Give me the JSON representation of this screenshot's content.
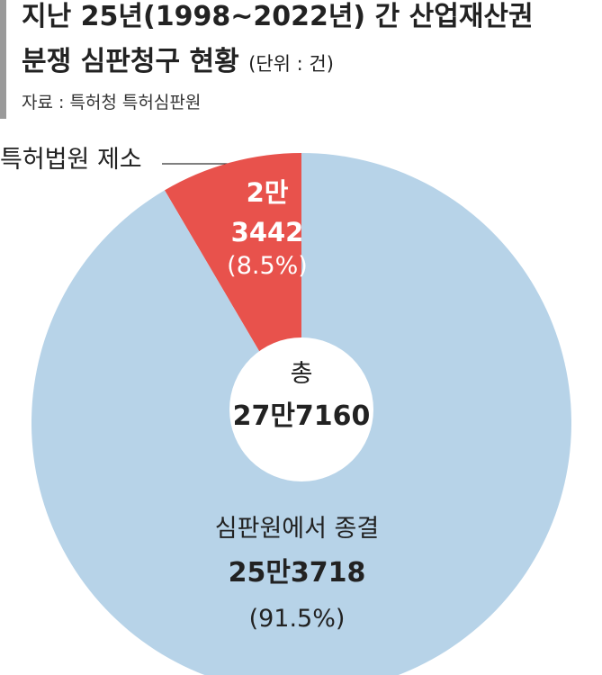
{
  "chart_data": {
    "type": "pie",
    "title": [
      "지난 25년(1998~2022년) 간 산업재산권",
      "분쟁 심판청구 현황"
    ],
    "unit": "(단위 : 건)",
    "source": "자료 : 특허청 특허심판원",
    "categories": [
      "특허법원 제소",
      "심판원에서 종결"
    ],
    "values": [
      23442,
      253718
    ],
    "value_labels": [
      "2만\n3442",
      "25만3718"
    ],
    "percents": [
      8.5,
      91.5
    ],
    "percent_labels": [
      "(8.5%)",
      "(91.5%)"
    ],
    "colors": [
      "#e8524c",
      "#b7d3e8"
    ],
    "center_label": "총",
    "total": 277160,
    "total_label": "27만7160"
  }
}
